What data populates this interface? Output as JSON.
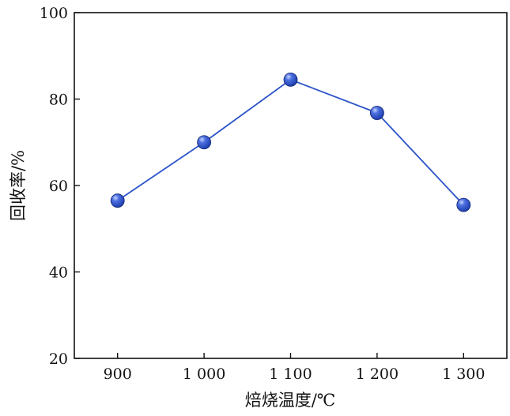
{
  "chart_data": {
    "type": "line",
    "title": "",
    "xlabel": "焙烧温度/℃",
    "ylabel": "回收率/%",
    "categories": [
      "900",
      "1 000",
      "1 100",
      "1 200",
      "1 300"
    ],
    "x": [
      900,
      1000,
      1100,
      1200,
      1300
    ],
    "series": [
      {
        "values": [
          56.5,
          70.0,
          84.5,
          76.8,
          55.5
        ]
      }
    ],
    "ylim": [
      20,
      100
    ],
    "yticks": [
      20,
      40,
      60,
      80,
      100
    ],
    "grid": false,
    "line_color": "#2a52c9",
    "marker_color": "#1f3fae",
    "marker_highlight": "#c8d6ff"
  }
}
